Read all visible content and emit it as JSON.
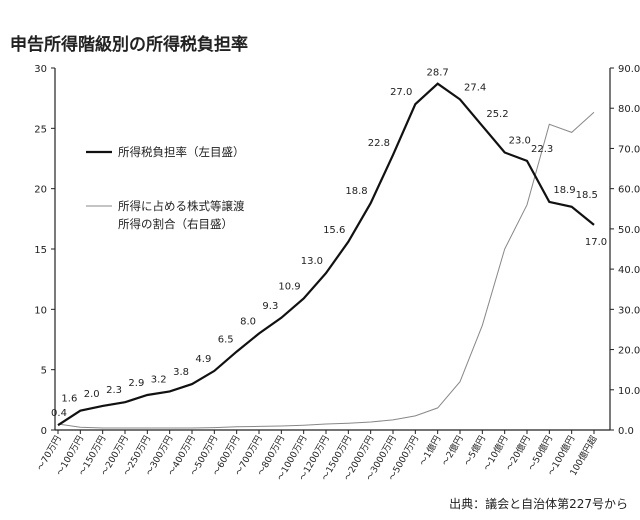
{
  "chart_data": {
    "type": "line",
    "title": "申告所得階級別の所得税負担率",
    "source": "出典：議会と自治体第227号から",
    "categories": [
      "～70万円",
      "～100万円",
      "～150万円",
      "～200万円",
      "～250万円",
      "～300万円",
      "～400万円",
      "～500万円",
      "～600万円",
      "～700万円",
      "～800万円",
      "～1000万円",
      "～1200万円",
      "～1500万円",
      "～2000万円",
      "～3000万円",
      "～5000万円",
      "～1億円",
      "～2億円",
      "～5億円",
      "～10億円",
      "～20億円",
      "～50億円",
      "～100億円",
      "100億円超"
    ],
    "y_left": {
      "lim": [
        0,
        30
      ],
      "ticks": [
        "0",
        "5",
        "10",
        "15",
        "20",
        "25",
        "30"
      ]
    },
    "y_right": {
      "lim": [
        0,
        90
      ],
      "ticks": [
        "0.0",
        "10.0",
        "20.0",
        "30.0",
        "40.0",
        "50.0",
        "60.0",
        "70.0",
        "80.0",
        "90.0"
      ]
    },
    "series": [
      {
        "name": "所得税負担率（左目盛）",
        "axis": "left",
        "color": "#111111",
        "values": [
          0.4,
          1.6,
          2.0,
          2.3,
          2.9,
          3.2,
          3.8,
          4.9,
          6.5,
          8.0,
          9.3,
          10.9,
          13.0,
          15.6,
          18.8,
          22.8,
          27.0,
          28.7,
          27.4,
          25.2,
          23.0,
          22.3,
          18.9,
          18.5,
          17.0
        ],
        "labels": [
          "0.4",
          "1.6",
          "2.0",
          "2.3",
          "2.9",
          "3.2",
          "3.8",
          "4.9",
          "6.5",
          "8.0",
          "9.3",
          "10.9",
          "13.0",
          "15.6",
          "18.8",
          "22.8",
          "27.0",
          "28.7",
          "27.4",
          "25.2",
          "23.0",
          "22.3",
          "18.9",
          "18.5",
          "17.0"
        ]
      },
      {
        "name_lines": [
          "所得に占める株式等譲渡",
          "所得の割合（右目盛）"
        ],
        "axis": "right",
        "color": "#888888",
        "values": [
          1.5,
          0.7,
          0.5,
          0.5,
          0.5,
          0.5,
          0.5,
          0.6,
          0.8,
          0.9,
          1.0,
          1.2,
          1.5,
          1.7,
          2.0,
          2.5,
          3.5,
          5.5,
          12.0,
          26.0,
          45.0,
          56.0,
          76.0,
          74.0,
          79.0
        ]
      }
    ],
    "grid": false
  }
}
